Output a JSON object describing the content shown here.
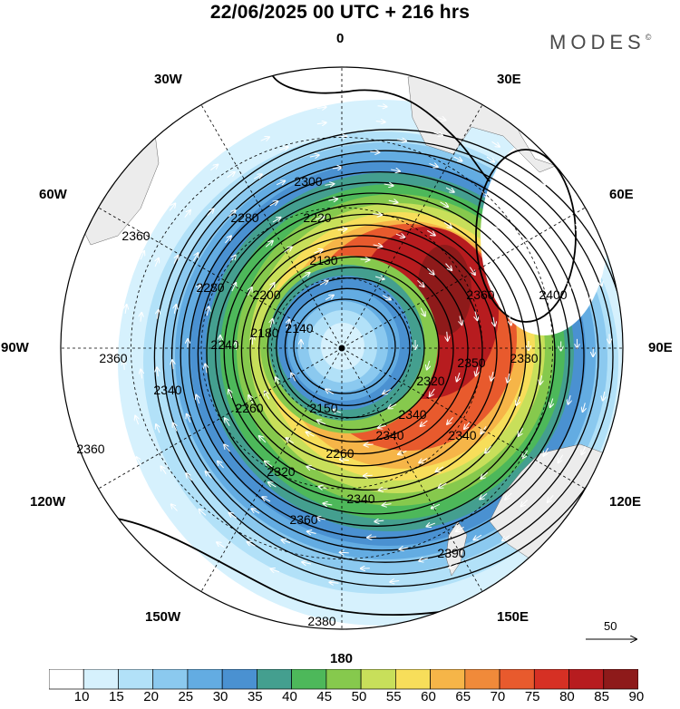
{
  "title": "22/06/2025  00 UTC  + 216 hrs",
  "brand": "MODES",
  "brand_mark": "©",
  "longitude_labels": {
    "lon_0": "0",
    "lon_30e": "30E",
    "lon_60e": "60E",
    "lon_90e": "90E",
    "lon_120e": "120E",
    "lon_150e": "150E",
    "lon_180": "180",
    "lon_150w": "150W",
    "lon_120w": "120W",
    "lon_90w": "90W",
    "lon_60w": "60W",
    "lon_30w": "30W"
  },
  "vector_scale": {
    "label": "50"
  },
  "contour_labels": [
    "2300",
    "2280",
    "2220",
    "2130",
    "2280",
    "2200",
    "2140",
    "2180",
    "2360",
    "2400",
    "2360",
    "2330",
    "2350",
    "2320",
    "2340",
    "2240",
    "2260",
    "2150",
    "2340",
    "2360",
    "2260",
    "2340",
    "2320",
    "2340",
    "2360",
    "2390",
    "2380",
    "2360",
    "2340"
  ],
  "colorbar": {
    "levels": [
      "10",
      "15",
      "20",
      "25",
      "30",
      "35",
      "40",
      "45",
      "50",
      "55",
      "60",
      "65",
      "70",
      "75",
      "80",
      "85",
      "90"
    ],
    "colors": [
      "#ffffff",
      "#d6f1fd",
      "#b2e1f8",
      "#8bc9ef",
      "#63ace2",
      "#4a91d1",
      "#449f8f",
      "#4db85a",
      "#86c94d",
      "#c8df5a",
      "#f7de5a",
      "#f6b548",
      "#f08a3a",
      "#e85a2d",
      "#d63024",
      "#b71c1f",
      "#8e1a1a"
    ]
  },
  "colors": {
    "land": "#ececec",
    "grid": "#000000",
    "contour": "#000000",
    "vector": "#ffffff"
  }
}
